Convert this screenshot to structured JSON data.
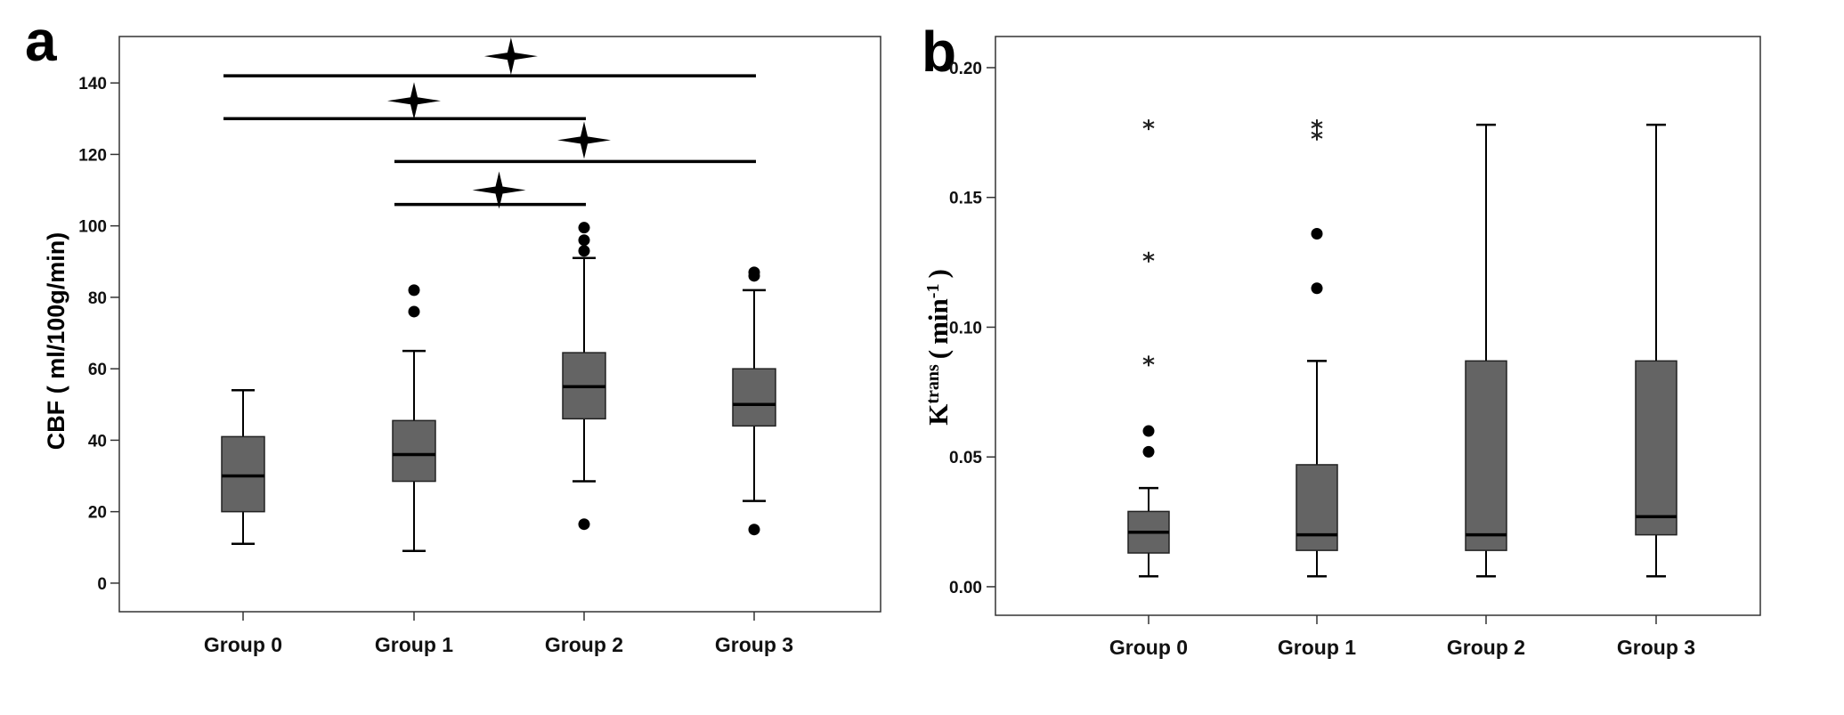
{
  "chart_data": [
    {
      "type": "box",
      "panel_label": "a",
      "title": "",
      "xlabel": "",
      "ylabel": "CBF ( ml/100g/min)",
      "ylim": [
        -8,
        153
      ],
      "yticks": [
        0,
        20,
        40,
        60,
        80,
        100,
        120,
        140
      ],
      "categories": [
        "Group 0",
        "Group 1",
        "Group 2",
        "Group 3"
      ],
      "boxes": [
        {
          "group": "Group 0",
          "whisker_low": 11,
          "q1": 20,
          "median": 30,
          "q3": 41,
          "whisker_high": 54,
          "outliers": [],
          "extremes": []
        },
        {
          "group": "Group 1",
          "whisker_low": 9,
          "q1": 28.5,
          "median": 36,
          "q3": 45.5,
          "whisker_high": 65,
          "outliers": [
            76,
            82
          ],
          "extremes": []
        },
        {
          "group": "Group 2",
          "whisker_low": 28.5,
          "q1": 46,
          "median": 55,
          "q3": 64.5,
          "whisker_high": 91,
          "outliers": [
            16.5,
            93,
            96,
            99.5
          ],
          "extremes": []
        },
        {
          "group": "Group 3",
          "whisker_low": 23,
          "q1": 44,
          "median": 50,
          "q3": 60,
          "whisker_high": 82,
          "outliers": [
            15,
            86,
            87
          ],
          "extremes": []
        }
      ],
      "significance_bars": [
        {
          "from": "Group 0",
          "to": "Group 3",
          "y": 142,
          "marker_value": 147.5,
          "marker_group_pos": 1.57
        },
        {
          "from": "Group 0",
          "to": "Group 2",
          "y": 130,
          "marker_value": 135,
          "marker_group_pos": 1.0
        },
        {
          "from": "Group 1",
          "to": "Group 3",
          "y": 118,
          "marker_value": 124,
          "marker_group_pos": 2.0
        },
        {
          "from": "Group 1",
          "to": "Group 2",
          "y": 106,
          "marker_value": 110,
          "marker_group_pos": 1.5
        }
      ]
    },
    {
      "type": "box",
      "panel_label": "b",
      "title": "",
      "xlabel": "",
      "ylabel": "Ktrans ( min-1 )",
      "ylabel_parts": {
        "base": "K",
        "superscript": "trans",
        "unit": "min",
        "unit_exp": "-1",
        "open": "(",
        "close": ")"
      },
      "ylim": [
        -0.011,
        0.212
      ],
      "yticks": [
        "0.00",
        "0.05",
        "0.10",
        "0.15",
        "0.20"
      ],
      "categories": [
        "Group 0",
        "Group 1",
        "Group 2",
        "Group 3"
      ],
      "boxes": [
        {
          "group": "Group 0",
          "whisker_low": 0.004,
          "q1": 0.013,
          "median": 0.021,
          "q3": 0.029,
          "whisker_high": 0.038,
          "outliers": [
            0.052,
            0.06
          ],
          "extremes": [
            0.087,
            0.127,
            0.178
          ]
        },
        {
          "group": "Group 1",
          "whisker_low": 0.004,
          "q1": 0.014,
          "median": 0.02,
          "q3": 0.047,
          "whisker_high": 0.087,
          "outliers": [
            0.115,
            0.136
          ],
          "extremes": [
            0.174,
            0.178
          ]
        },
        {
          "group": "Group 2",
          "whisker_low": 0.004,
          "q1": 0.014,
          "median": 0.02,
          "q3": 0.087,
          "whisker_high": 0.178,
          "outliers": [],
          "extremes": []
        },
        {
          "group": "Group 3",
          "whisker_low": 0.004,
          "q1": 0.02,
          "median": 0.027,
          "q3": 0.087,
          "whisker_high": 0.178,
          "outliers": [],
          "extremes": []
        }
      ]
    }
  ],
  "style": {
    "box_fill": "#646464",
    "line_color": "#000000",
    "frame_color": "#333333"
  }
}
